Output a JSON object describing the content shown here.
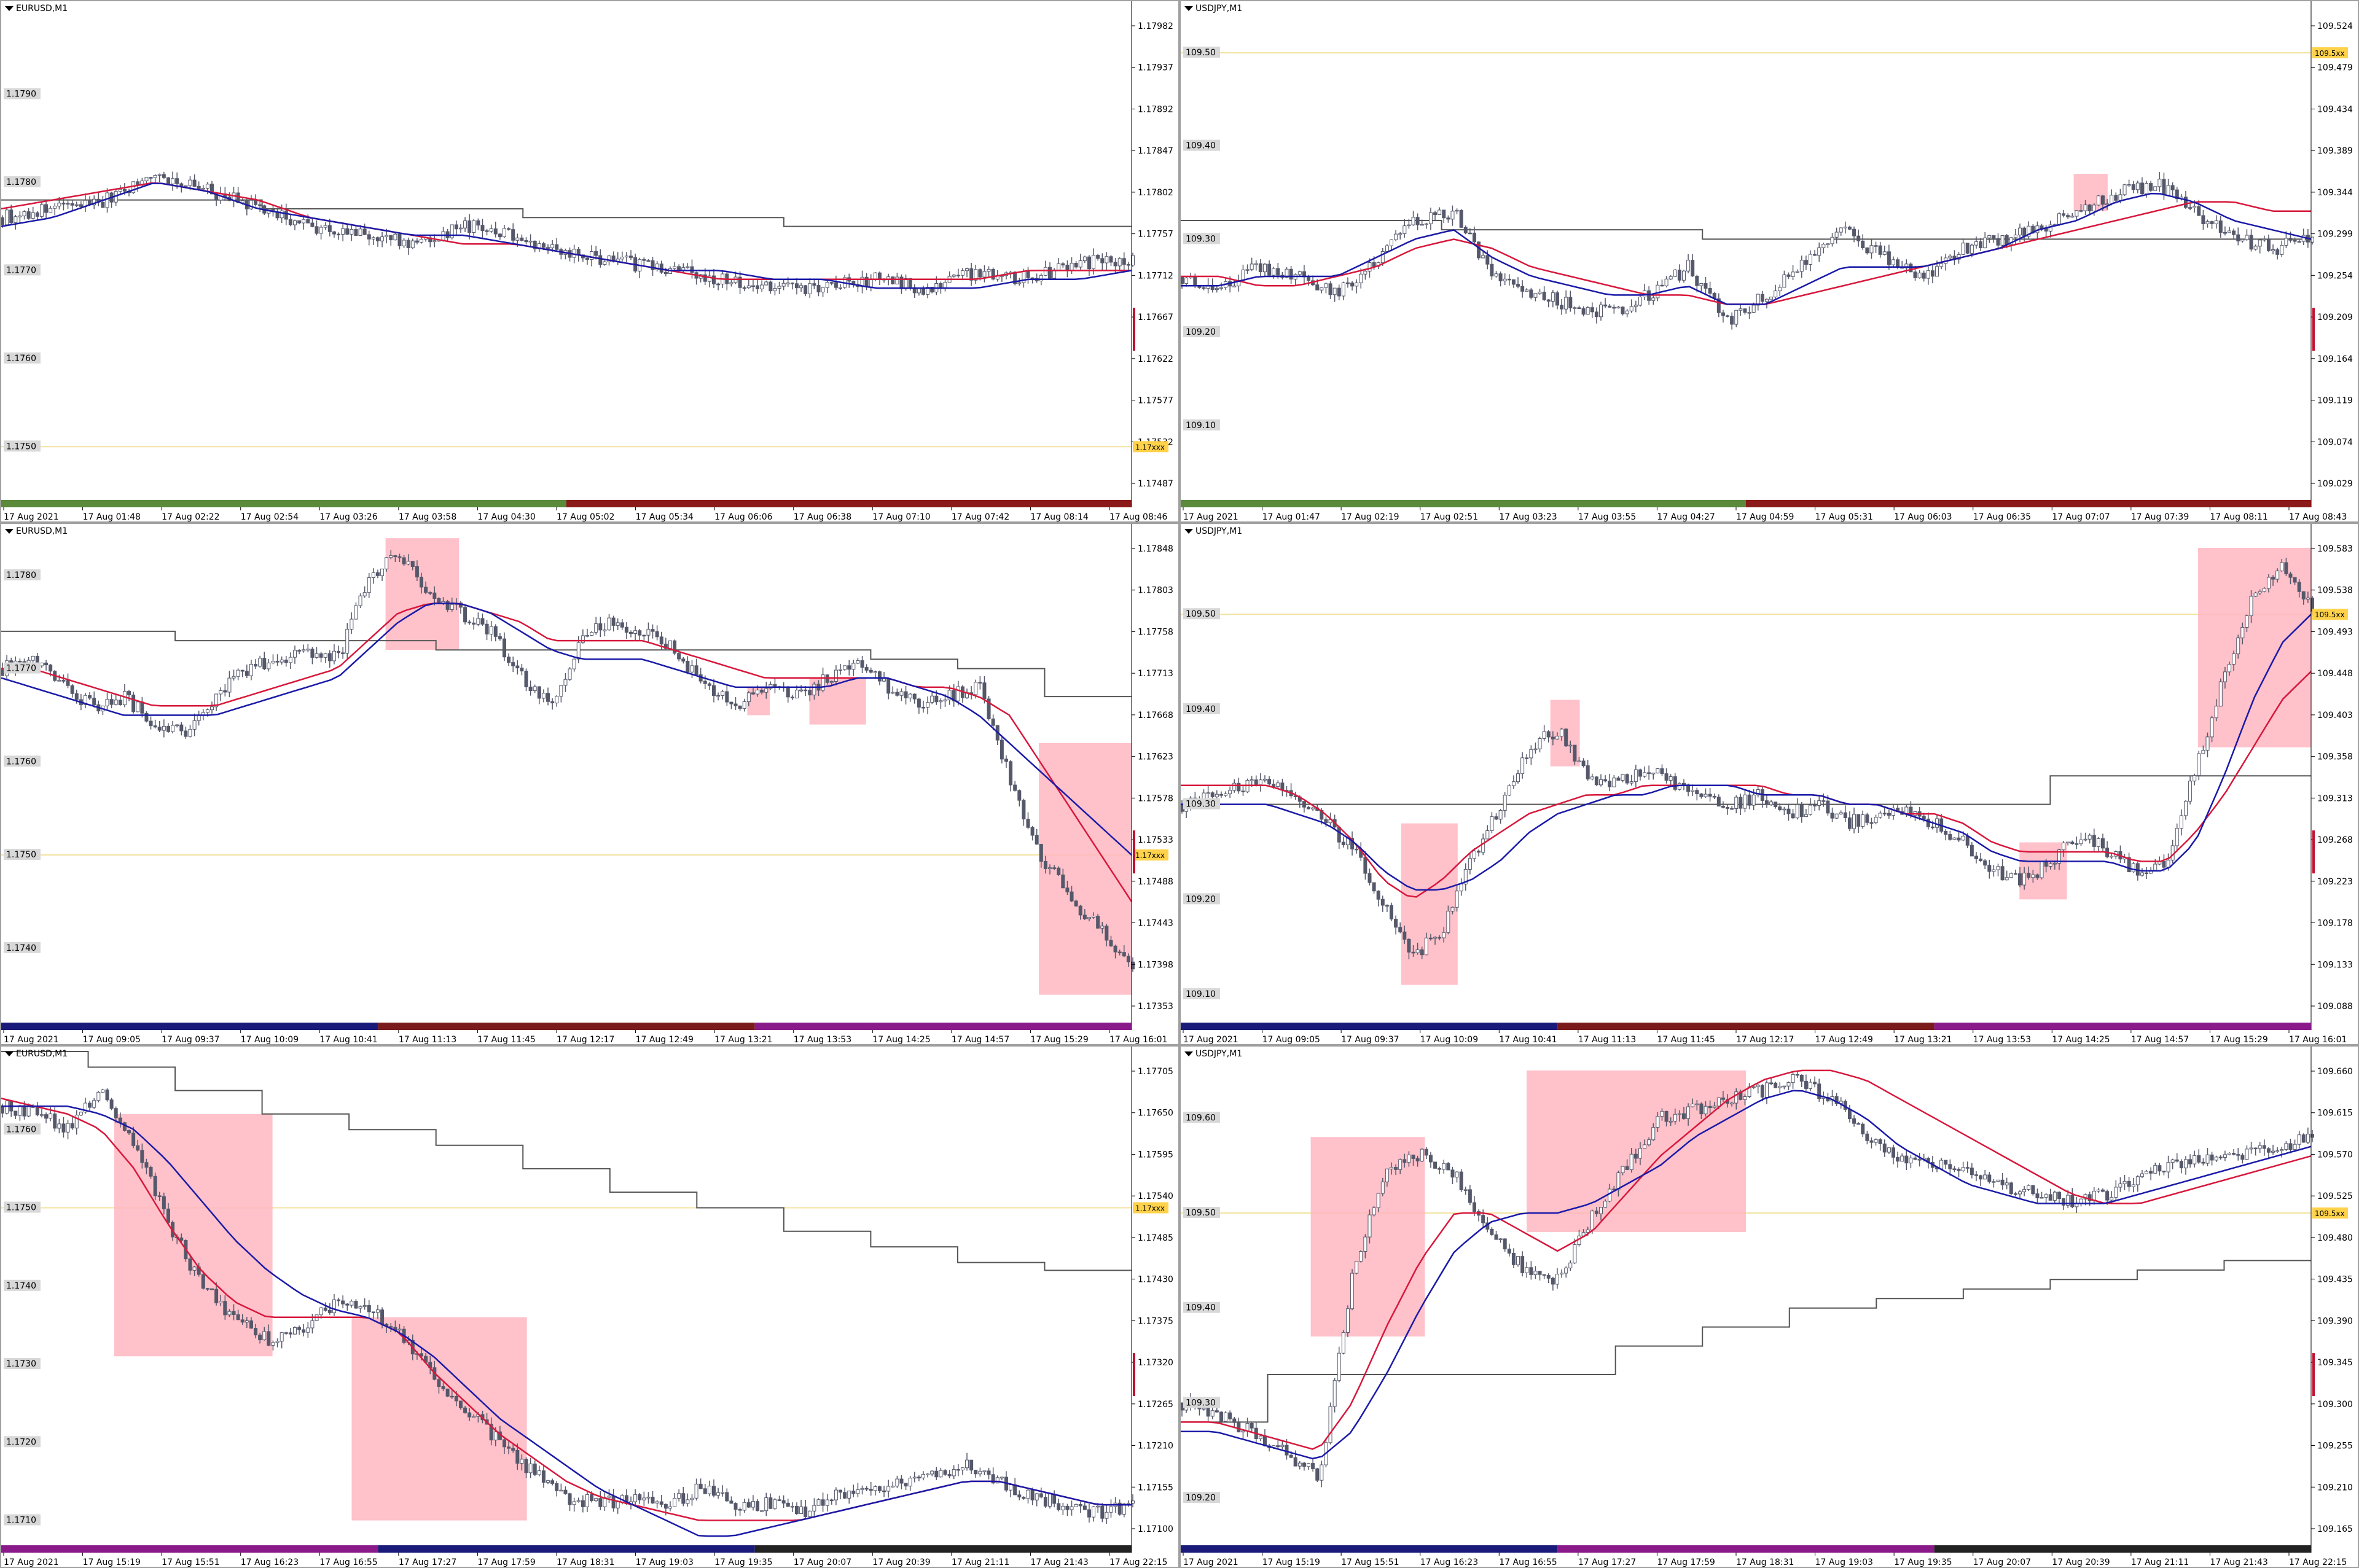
{
  "colors": {
    "candle_body": "#55586a",
    "candle_bull": "#ffffff",
    "ma_red": "#d7183c",
    "ma_blue": "#1a1aa8",
    "trend_line": "#555555",
    "highlight_box": "#ffb6c1",
    "level_line": "#f3e3a0",
    "price_tag": "#ffd24a",
    "axis_label_bg": "#d8d8d8"
  },
  "panels": [
    {
      "title": "EURUSD,M1",
      "watermark": "EURUSD",
      "price_tag": "1.17xxx",
      "left_levels": [
        "1.1790",
        "1.1780",
        "1.1770",
        "1.1760",
        "1.1750"
      ],
      "right_ticks": [
        "1.17982",
        "1.17937",
        "1.17892",
        "1.17847",
        "1.17802",
        "1.17757",
        "1.17712",
        "1.17667",
        "1.17622",
        "1.17577",
        "1.17532",
        "1.17487"
      ],
      "time_labels": [
        "17 Aug 2021",
        "17 Aug 01:48",
        "17 Aug 02:22",
        "17 Aug 02:54",
        "17 Aug 03:26",
        "17 Aug 03:58",
        "17 Aug 04:30",
        "17 Aug 05:02",
        "17 Aug 05:34",
        "17 Aug 06:06",
        "17 Aug 06:38",
        "17 Aug 07:10",
        "17 Aug 07:42",
        "17 Aug 08:14",
        "17 Aug 08:46"
      ]
    },
    {
      "title": "USDJPY,M1",
      "price_tag": "109.5xx",
      "left_levels": [
        "109.50",
        "109.40",
        "109.30",
        "109.20",
        "109.10"
      ],
      "right_ticks": [
        "109.524",
        "109.479",
        "109.434",
        "109.389",
        "109.344",
        "109.299",
        "109.254",
        "109.209",
        "109.164",
        "109.119",
        "109.074",
        "109.029"
      ],
      "time_labels": [
        "17 Aug 2021",
        "17 Aug 01:47",
        "17 Aug 02:19",
        "17 Aug 02:51",
        "17 Aug 03:23",
        "17 Aug 03:55",
        "17 Aug 04:27",
        "17 Aug 04:59",
        "17 Aug 05:31",
        "17 Aug 06:03",
        "17 Aug 06:35",
        "17 Aug 07:07",
        "17 Aug 07:39",
        "17 Aug 08:11",
        "17 Aug 08:43"
      ]
    },
    {
      "title": "EURUSD,M1",
      "price_tag": "1.17xxx",
      "left_levels": [
        "1.1780",
        "1.1770",
        "1.1760",
        "1.1750",
        "1.1740"
      ],
      "right_ticks": [
        "1.17848",
        "1.17803",
        "1.17758",
        "1.17713",
        "1.17668",
        "1.17623",
        "1.17578",
        "1.17533",
        "1.17488",
        "1.17443",
        "1.17398",
        "1.17353"
      ],
      "time_labels": [
        "17 Aug 2021",
        "17 Aug 09:05",
        "17 Aug 09:37",
        "17 Aug 10:09",
        "17 Aug 10:41",
        "17 Aug 11:13",
        "17 Aug 11:45",
        "17 Aug 12:17",
        "17 Aug 12:49",
        "17 Aug 13:21",
        "17 Aug 13:53",
        "17 Aug 14:25",
        "17 Aug 14:57",
        "17 Aug 15:29",
        "17 Aug 16:01"
      ]
    },
    {
      "title": "USDJPY,M1",
      "watermark": "USDJPY",
      "price_tag": "109.5xx",
      "left_levels": [
        "109.50",
        "109.40",
        "109.30",
        "109.20",
        "109.10"
      ],
      "right_ticks": [
        "109.583",
        "109.538",
        "109.493",
        "109.448",
        "109.403",
        "109.358",
        "109.313",
        "109.268",
        "109.223",
        "109.178",
        "109.133",
        "109.088"
      ],
      "time_labels": [
        "17 Aug 2021",
        "17 Aug 09:05",
        "17 Aug 09:37",
        "17 Aug 10:09",
        "17 Aug 10:41",
        "17 Aug 11:13",
        "17 Aug 11:45",
        "17 Aug 12:17",
        "17 Aug 12:49",
        "17 Aug 13:21",
        "17 Aug 13:53",
        "17 Aug 14:25",
        "17 Aug 14:57",
        "17 Aug 15:29",
        "17 Aug 16:01"
      ]
    },
    {
      "title": "EURUSD,M1",
      "price_tag": "1.17xxx",
      "left_levels": [
        "1.1760",
        "1.1750",
        "1.1740",
        "1.1730",
        "1.1720",
        "1.1710"
      ],
      "right_ticks": [
        "1.17705",
        "1.17650",
        "1.17595",
        "1.17540",
        "1.17485",
        "1.17430",
        "1.17375",
        "1.17320",
        "1.17265",
        "1.17210",
        "1.17155",
        "1.17100"
      ],
      "time_labels": [
        "17 Aug 2021",
        "17 Aug 15:19",
        "17 Aug 15:51",
        "17 Aug 16:23",
        "17 Aug 16:55",
        "17 Aug 17:27",
        "17 Aug 17:59",
        "17 Aug 18:31",
        "17 Aug 19:03",
        "17 Aug 19:35",
        "17 Aug 20:07",
        "17 Aug 20:39",
        "17 Aug 21:11",
        "17 Aug 21:43",
        "17 Aug 22:15"
      ]
    },
    {
      "title": "USDJPY,M1",
      "price_tag": "109.5xx",
      "left_levels": [
        "109.60",
        "109.50",
        "109.40",
        "109.30",
        "109.20"
      ],
      "right_ticks": [
        "109.660",
        "109.615",
        "109.570",
        "109.525",
        "109.480",
        "109.435",
        "109.390",
        "109.345",
        "109.300",
        "109.255",
        "109.210",
        "109.165"
      ],
      "time_labels": [
        "17 Aug 2021",
        "17 Aug 15:19",
        "17 Aug 15:51",
        "17 Aug 16:23",
        "17 Aug 16:55",
        "17 Aug 17:27",
        "17 Aug 17:59",
        "17 Aug 18:31",
        "17 Aug 19:03",
        "17 Aug 19:35",
        "17 Aug 20:07",
        "17 Aug 20:39",
        "17 Aug 21:11",
        "17 Aug 21:43",
        "17 Aug 22:15"
      ]
    }
  ],
  "chart_data": [
    {
      "type": "candlestick",
      "symbol": "EURUSD",
      "timeframe": "M1",
      "ylim": [
        1.1745,
        1.18
      ],
      "level_line": 1.175,
      "price_path": [
        1.1776,
        1.1777,
        1.1778,
        1.1781,
        1.1779,
        1.1777,
        1.1775,
        1.1774,
        1.1773,
        1.1775,
        1.1774,
        1.1772,
        1.1771,
        1.177,
        1.1769,
        1.1768,
        1.1768,
        1.1769,
        1.1768,
        1.177,
        1.1769,
        1.1771,
        1.1771
      ],
      "ma_red": [
        1.1777,
        1.1778,
        1.1779,
        1.178,
        1.1779,
        1.1778,
        1.1776,
        1.1775,
        1.1774,
        1.1773,
        1.1773,
        1.1772,
        1.1771,
        1.177,
        1.1769,
        1.1769,
        1.1769,
        1.1769,
        1.1769,
        1.1769,
        1.177,
        1.177,
        1.177
      ],
      "ma_blue": [
        1.1775,
        1.1776,
        1.1778,
        1.178,
        1.1779,
        1.1777,
        1.1776,
        1.1775,
        1.1774,
        1.1774,
        1.1773,
        1.1772,
        1.1771,
        1.177,
        1.177,
        1.1769,
        1.1769,
        1.1768,
        1.1768,
        1.1768,
        1.1769,
        1.1769,
        1.177
      ],
      "step_line": [
        1.1778,
        1.1778,
        1.1778,
        1.1777,
        1.1777,
        1.1777,
        1.1776,
        1.1776,
        1.1776,
        1.1775,
        1.1775,
        1.1775,
        1.1775
      ],
      "highlight_boxes": []
    },
    {
      "type": "candlestick",
      "symbol": "USDJPY",
      "timeframe": "M1",
      "ylim": [
        109.03,
        109.55
      ],
      "level_line": 109.5,
      "price_path": [
        109.26,
        109.25,
        109.27,
        109.26,
        109.24,
        109.28,
        109.32,
        109.33,
        109.26,
        109.24,
        109.23,
        109.22,
        109.24,
        109.27,
        109.21,
        109.24,
        109.28,
        109.31,
        109.28,
        109.26,
        109.29,
        109.3,
        109.31,
        109.33,
        109.35,
        109.36,
        109.33,
        109.3,
        109.29,
        109.3
      ],
      "ma_red": [
        109.26,
        109.26,
        109.25,
        109.25,
        109.26,
        109.27,
        109.29,
        109.3,
        109.29,
        109.27,
        109.26,
        109.25,
        109.24,
        109.24,
        109.23,
        109.23,
        109.24,
        109.25,
        109.26,
        109.27,
        109.28,
        109.29,
        109.3,
        109.31,
        109.32,
        109.33,
        109.34,
        109.34,
        109.33,
        109.33
      ],
      "ma_blue": [
        109.25,
        109.25,
        109.26,
        109.26,
        109.26,
        109.28,
        109.3,
        109.31,
        109.28,
        109.26,
        109.25,
        109.24,
        109.24,
        109.25,
        109.23,
        109.23,
        109.25,
        109.27,
        109.27,
        109.27,
        109.28,
        109.29,
        109.31,
        109.32,
        109.34,
        109.35,
        109.34,
        109.32,
        109.31,
        109.3
      ],
      "step_line": [
        109.32,
        109.32,
        109.32,
        109.31,
        109.31,
        109.31,
        109.3,
        109.3,
        109.3,
        109.3,
        109.3,
        109.3,
        109.3
      ],
      "highlight_boxes": [
        {
          "x0": 0.79,
          "x1": 0.82,
          "y0": 109.37,
          "y1": 109.33
        }
      ]
    },
    {
      "type": "candlestick",
      "symbol": "EURUSD",
      "timeframe": "M1",
      "ylim": [
        1.1733,
        1.1785
      ],
      "level_line": 1.175,
      "price_path": [
        1.177,
        1.1771,
        1.1768,
        1.1766,
        1.1767,
        1.1764,
        1.1763,
        1.1767,
        1.177,
        1.1771,
        1.1772,
        1.1771,
        1.178,
        1.1782,
        1.1778,
        1.1776,
        1.1774,
        1.1769,
        1.1766,
        1.1774,
        1.1775,
        1.1774,
        1.1772,
        1.1768,
        1.1766,
        1.1768,
        1.1767,
        1.1769,
        1.1771,
        1.1768,
        1.1766,
        1.1767,
        1.1768,
        1.1758,
        1.175,
        1.1745,
        1.1742,
        1.1738
      ],
      "ma_red": [
        1.177,
        1.177,
        1.1769,
        1.1768,
        1.1767,
        1.1766,
        1.1766,
        1.1766,
        1.1767,
        1.1768,
        1.1769,
        1.177,
        1.1773,
        1.1776,
        1.1777,
        1.1777,
        1.1776,
        1.1775,
        1.1773,
        1.1773,
        1.1773,
        1.1773,
        1.1772,
        1.1771,
        1.177,
        1.1769,
        1.1769,
        1.1769,
        1.1769,
        1.1769,
        1.1768,
        1.1768,
        1.1767,
        1.1765,
        1.176,
        1.1755,
        1.175,
        1.1745
      ],
      "ma_blue": [
        1.1769,
        1.1768,
        1.1767,
        1.1766,
        1.1765,
        1.1765,
        1.1765,
        1.1765,
        1.1766,
        1.1767,
        1.1768,
        1.1769,
        1.1772,
        1.1775,
        1.1777,
        1.1777,
        1.1776,
        1.1774,
        1.1772,
        1.1771,
        1.1771,
        1.1771,
        1.177,
        1.1769,
        1.1768,
        1.1768,
        1.1768,
        1.1768,
        1.1769,
        1.1769,
        1.1768,
        1.1767,
        1.1765,
        1.1762,
        1.1759,
        1.1756,
        1.1753,
        1.175
      ],
      "step_line": [
        1.1774,
        1.1774,
        1.1773,
        1.1773,
        1.1773,
        1.1772,
        1.1772,
        1.1772,
        1.1772,
        1.1772,
        1.1771,
        1.177,
        1.1767
      ],
      "highlight_boxes": [
        {
          "x0": 0.34,
          "x1": 0.405,
          "y0": 1.1784,
          "y1": 1.1772
        },
        {
          "x0": 0.66,
          "x1": 0.68,
          "y0": 1.1768,
          "y1": 1.1765
        },
        {
          "x0": 0.715,
          "x1": 0.765,
          "y0": 1.1769,
          "y1": 1.1764
        },
        {
          "x0": 0.918,
          "x1": 1.0,
          "y0": 1.1762,
          "y1": 1.1735
        }
      ]
    },
    {
      "type": "candlestick",
      "symbol": "USDJPY",
      "timeframe": "M1",
      "ylim": [
        109.08,
        109.59
      ],
      "level_line": 109.5,
      "price_path": [
        109.3,
        109.31,
        109.32,
        109.32,
        109.31,
        109.28,
        109.25,
        109.19,
        109.14,
        109.17,
        109.24,
        109.3,
        109.36,
        109.38,
        109.33,
        109.32,
        109.34,
        109.32,
        109.31,
        109.3,
        109.31,
        109.29,
        109.3,
        109.28,
        109.29,
        109.29,
        109.28,
        109.26,
        109.23,
        109.22,
        109.24,
        109.27,
        109.25,
        109.23,
        109.24,
        109.34,
        109.44,
        109.52,
        109.55,
        109.51
      ],
      "ma_red": [
        109.32,
        109.32,
        109.32,
        109.32,
        109.31,
        109.29,
        109.26,
        109.22,
        109.2,
        109.22,
        109.25,
        109.27,
        109.29,
        109.3,
        109.31,
        109.31,
        109.32,
        109.32,
        109.32,
        109.32,
        109.32,
        109.31,
        109.31,
        109.3,
        109.3,
        109.29,
        109.29,
        109.28,
        109.26,
        109.25,
        109.25,
        109.25,
        109.25,
        109.24,
        109.24,
        109.27,
        109.31,
        109.36,
        109.41,
        109.44
      ],
      "ma_blue": [
        109.3,
        109.3,
        109.3,
        109.3,
        109.29,
        109.28,
        109.26,
        109.23,
        109.21,
        109.21,
        109.22,
        109.24,
        109.27,
        109.29,
        109.3,
        109.31,
        109.31,
        109.32,
        109.32,
        109.32,
        109.31,
        109.31,
        109.31,
        109.3,
        109.3,
        109.29,
        109.28,
        109.27,
        109.25,
        109.24,
        109.24,
        109.24,
        109.24,
        109.23,
        109.23,
        109.26,
        109.33,
        109.41,
        109.47,
        109.5
      ],
      "step_line": [
        109.3,
        109.3,
        109.3,
        109.3,
        109.3,
        109.3,
        109.3,
        109.3,
        109.3,
        109.3,
        109.33,
        109.33,
        109.33
      ],
      "highlight_boxes": [
        {
          "x0": 0.195,
          "x1": 0.245,
          "y0": 109.28,
          "y1": 109.11
        },
        {
          "x0": 0.327,
          "x1": 0.353,
          "y0": 109.41,
          "y1": 109.34
        },
        {
          "x0": 0.742,
          "x1": 0.784,
          "y0": 109.26,
          "y1": 109.2
        },
        {
          "x0": 0.9,
          "x1": 1.0,
          "y0": 109.57,
          "y1": 109.36
        }
      ]
    },
    {
      "type": "candlestick",
      "symbol": "EURUSD",
      "timeframe": "M1",
      "ylim": [
        1.1708,
        1.177
      ],
      "level_line": 1.175,
      "price_path": [
        1.1763,
        1.1762,
        1.176,
        1.1765,
        1.1758,
        1.1748,
        1.174,
        1.1736,
        1.1733,
        1.1734,
        1.1738,
        1.1737,
        1.1734,
        1.1728,
        1.1724,
        1.172,
        1.1716,
        1.1713,
        1.1712,
        1.1713,
        1.1712,
        1.1714,
        1.1712,
        1.1712,
        1.1711,
        1.1713,
        1.1714,
        1.1715,
        1.1716,
        1.1717,
        1.1715,
        1.1713,
        1.1712,
        1.1711,
        1.1712
      ],
      "ma_red": [
        1.1764,
        1.1763,
        1.1762,
        1.176,
        1.1755,
        1.1748,
        1.1742,
        1.1738,
        1.1736,
        1.1736,
        1.1736,
        1.1736,
        1.1734,
        1.1729,
        1.1725,
        1.1721,
        1.1718,
        1.1715,
        1.1713,
        1.1712,
        1.1711,
        1.171,
        1.171,
        1.171,
        1.171,
        1.1711,
        1.1712,
        1.1713,
        1.1714,
        1.1715,
        1.1715,
        1.1714,
        1.1713,
        1.1712,
        1.1712
      ],
      "ma_blue": [
        1.1763,
        1.1763,
        1.1763,
        1.1762,
        1.176,
        1.1756,
        1.1751,
        1.1746,
        1.1742,
        1.1739,
        1.1737,
        1.1736,
        1.1734,
        1.1731,
        1.1727,
        1.1723,
        1.172,
        1.1717,
        1.1714,
        1.1712,
        1.171,
        1.1708,
        1.1708,
        1.1709,
        1.171,
        1.1711,
        1.1712,
        1.1713,
        1.1714,
        1.1715,
        1.1715,
        1.1714,
        1.1713,
        1.1712,
        1.1712
      ],
      "step_line": [
        1.177,
        1.1768,
        1.1765,
        1.1762,
        1.176,
        1.1758,
        1.1755,
        1.1752,
        1.175,
        1.1747,
        1.1745,
        1.1743,
        1.1742
      ],
      "highlight_boxes": [
        {
          "x0": 0.1,
          "x1": 0.24,
          "y0": 1.1762,
          "y1": 1.1731
        },
        {
          "x0": 0.31,
          "x1": 0.465,
          "y0": 1.1736,
          "y1": 1.171
        }
      ]
    },
    {
      "type": "candlestick",
      "symbol": "USDJPY",
      "timeframe": "M1",
      "ylim": [
        109.16,
        109.67
      ],
      "level_line": 109.5,
      "price_path": [
        109.3,
        109.29,
        109.27,
        109.25,
        109.22,
        109.44,
        109.55,
        109.56,
        109.54,
        109.48,
        109.44,
        109.43,
        109.5,
        109.55,
        109.6,
        109.61,
        109.62,
        109.63,
        109.64,
        109.62,
        109.58,
        109.56,
        109.55,
        109.54,
        109.53,
        109.52,
        109.51,
        109.52,
        109.54,
        109.55,
        109.56,
        109.56,
        109.57,
        109.58
      ],
      "ma_red": [
        109.28,
        109.28,
        109.27,
        109.26,
        109.25,
        109.3,
        109.38,
        109.45,
        109.5,
        109.5,
        109.48,
        109.46,
        109.48,
        109.52,
        109.56,
        109.59,
        109.62,
        109.64,
        109.65,
        109.65,
        109.64,
        109.62,
        109.6,
        109.58,
        109.56,
        109.54,
        109.52,
        109.51,
        109.51,
        109.52,
        109.53,
        109.54,
        109.55,
        109.56
      ],
      "ma_blue": [
        109.27,
        109.27,
        109.26,
        109.25,
        109.24,
        109.27,
        109.33,
        109.4,
        109.46,
        109.49,
        109.5,
        109.5,
        109.51,
        109.53,
        109.55,
        109.58,
        109.6,
        109.62,
        109.63,
        109.62,
        109.6,
        109.57,
        109.55,
        109.53,
        109.52,
        109.51,
        109.51,
        109.51,
        109.52,
        109.53,
        109.54,
        109.55,
        109.56,
        109.57
      ],
      "step_line": [
        109.28,
        109.33,
        109.33,
        109.33,
        109.33,
        109.36,
        109.38,
        109.4,
        109.41,
        109.42,
        109.43,
        109.44,
        109.45
      ],
      "highlight_boxes": [
        {
          "x0": 0.115,
          "x1": 0.216,
          "y0": 109.58,
          "y1": 109.37
        },
        {
          "x0": 0.306,
          "x1": 0.5,
          "y0": 109.65,
          "y1": 109.48
        }
      ]
    }
  ]
}
